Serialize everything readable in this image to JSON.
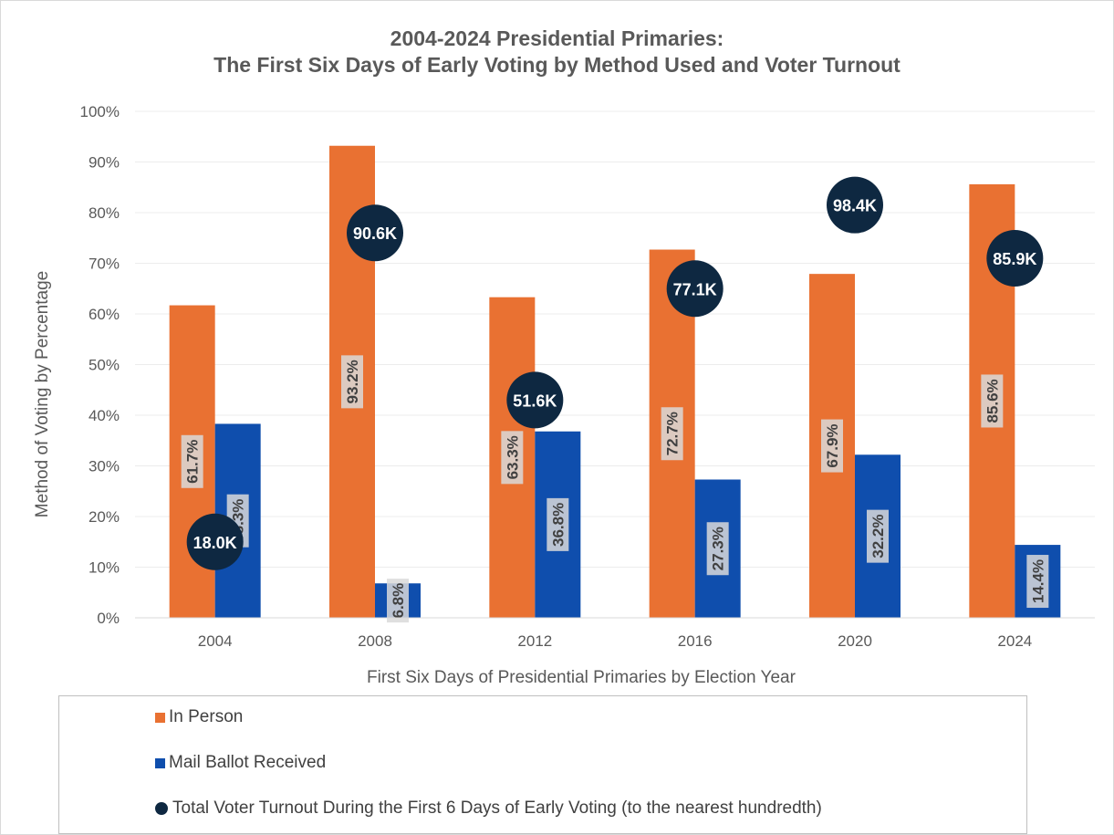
{
  "chart_data": {
    "type": "bar",
    "title_line1": "2004-2024 Presidential Primaries:",
    "title_line2": "The First Six Days of Early Voting by Method Used and Voter Turnout",
    "xlabel": "First Six Days of Presidential Primaries by Election Year",
    "ylabel": "Method of Voting by Percentage",
    "categories": [
      "2004",
      "2008",
      "2012",
      "2016",
      "2020",
      "2024"
    ],
    "ylim": [
      0,
      100
    ],
    "yticks": [
      0,
      10,
      20,
      30,
      40,
      50,
      60,
      70,
      80,
      90,
      100
    ],
    "ytick_labels": [
      "0%",
      "10%",
      "20%",
      "30%",
      "40%",
      "50%",
      "60%",
      "70%",
      "80%",
      "90%",
      "100%"
    ],
    "series": [
      {
        "name": "In Person",
        "color": "#e97132",
        "values": [
          61.7,
          93.2,
          63.3,
          72.7,
          67.9,
          85.6
        ],
        "labels": [
          "61.7%",
          "93.2%",
          "63.3%",
          "72.7%",
          "67.9%",
          "85.6%"
        ]
      },
      {
        "name": "Mail Ballot Received",
        "color": "#0f4ead",
        "values": [
          38.3,
          6.8,
          36.8,
          27.3,
          32.2,
          14.4
        ],
        "labels": [
          "38.3%",
          "6.8%",
          "36.8%",
          "27.3%",
          "32.2%",
          "14.4%"
        ]
      }
    ],
    "turnout": {
      "name": "Total Voter Turnout During the First 6 Days of Early Voting (to the nearest hundredth)",
      "color": "#0e2841",
      "values": [
        18.0,
        90.6,
        51.6,
        77.1,
        98.4,
        85.9
      ],
      "labels": [
        "18.0K",
        "90.6K",
        "51.6K",
        "77.1K",
        "98.4K",
        "85.9K"
      ],
      "level_pct": [
        15,
        76,
        43,
        65,
        81.5,
        71
      ]
    },
    "grid": true,
    "legend_position": "bottom"
  }
}
